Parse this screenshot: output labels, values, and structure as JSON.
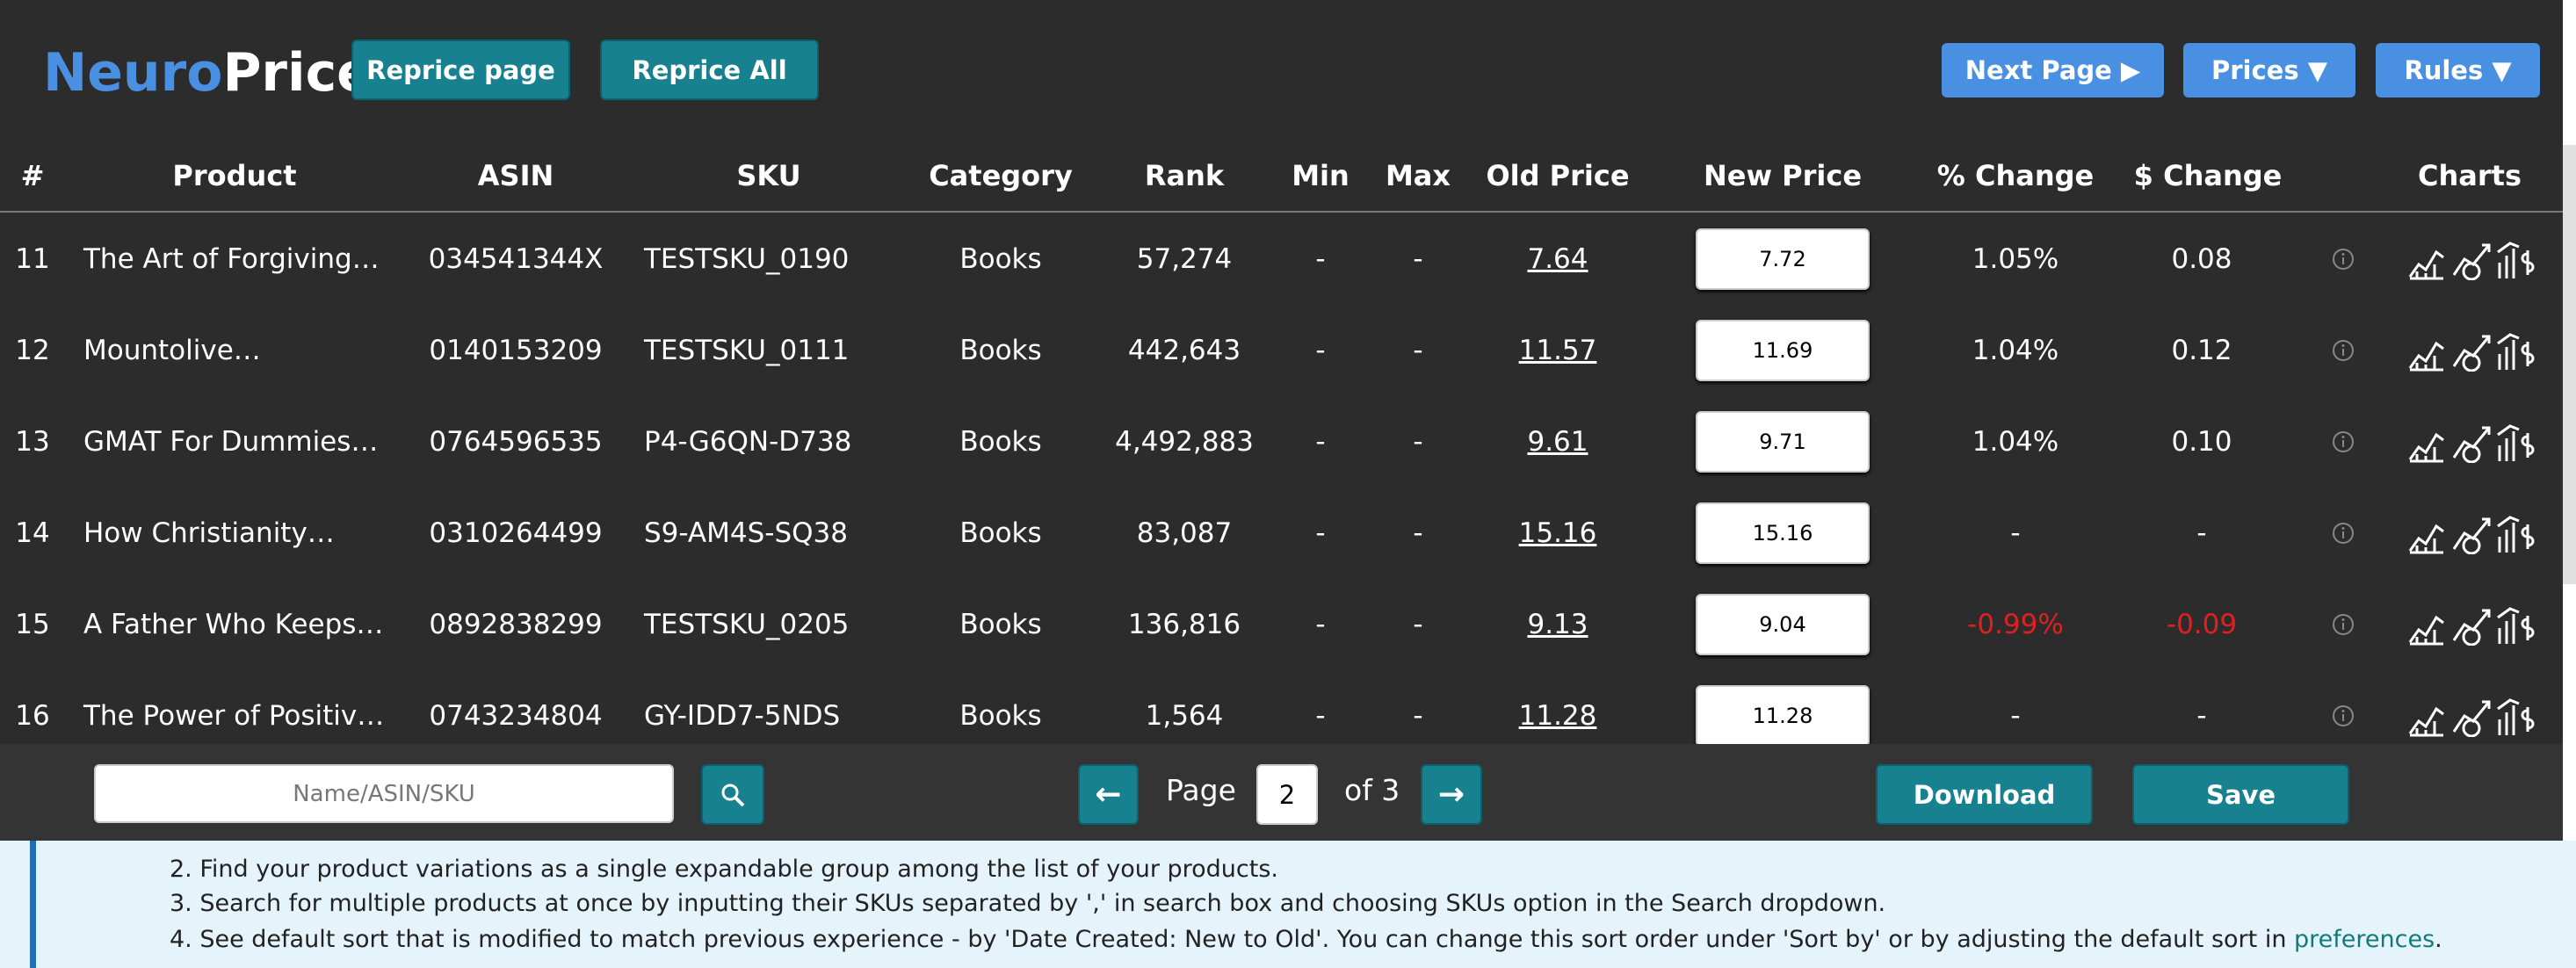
{
  "header": {
    "logo": [
      "Neuro",
      "Price"
    ],
    "buttons": [
      "Reprice page",
      "Reprice All"
    ],
    "menu": [
      "Next Page ▶",
      "Prices ▼",
      "Rules ▼"
    ]
  },
  "table": {
    "columns": [
      "#",
      "Product",
      "ASIN",
      "SKU",
      "Category",
      "Rank",
      "Min",
      "Max",
      "Old Price",
      "New Price",
      "% Change",
      "$ Change",
      "Charts"
    ],
    "rows": [
      [
        "11",
        "The Art of Forgiving…",
        "034541344X",
        "TESTSKU_0190",
        "Books",
        "57,274",
        "-",
        "-",
        "7.64",
        "7.72",
        "1.05%",
        "0.08"
      ],
      [
        "12",
        "Mountolive…",
        "0140153209",
        "TESTSKU_0111",
        "Books",
        "442,643",
        "-",
        "-",
        "11.57",
        "11.69",
        "1.04%",
        "0.12"
      ],
      [
        "13",
        "GMAT For Dummies…",
        "0764596535",
        "P4-G6QN-D738",
        "Books",
        "4,492,883",
        "-",
        "-",
        "9.61",
        "9.71",
        "1.04%",
        "0.10"
      ],
      [
        "14",
        "How Christianity…",
        "0310264499",
        "S9-AM4S-SQ38",
        "Books",
        "83,087",
        "-",
        "-",
        "15.16",
        "15.16",
        "-",
        "-"
      ],
      [
        "15",
        "A Father Who Keeps…",
        "0892838299",
        "TESTSKU_0205",
        "Books",
        "136,816",
        "-",
        "-",
        "9.13",
        "9.04",
        "-0.99%",
        "-0.09"
      ],
      [
        "16",
        "The Power of Positiv…",
        "0743234804",
        "GY-IDD7-5NDS",
        "Books",
        "1,564",
        "-",
        "-",
        "11.28",
        "11.28",
        "-",
        "-"
      ]
    ]
  },
  "footer": {
    "search_placeholder": "Name/ASIN/SKU",
    "prev": "←",
    "page_label": "Page",
    "page": "2",
    "of": "of 3",
    "next": "→",
    "download": "Download",
    "save": "Save"
  },
  "notes": [
    "2. Find your product variations as a single expandable group among the list of your products.",
    "3. Search for multiple products at once by inputting their SKUs separated by ',' in search box and choosing SKUs option in the Search dropdown.",
    {
      "text": "4. See default sort that is modified to match previous experience - by 'Date Created: New to Old'. You can change this sort order under 'Sort by' or by adjusting the default sort in ",
      "link": "preferences",
      "end": "."
    }
  ]
}
